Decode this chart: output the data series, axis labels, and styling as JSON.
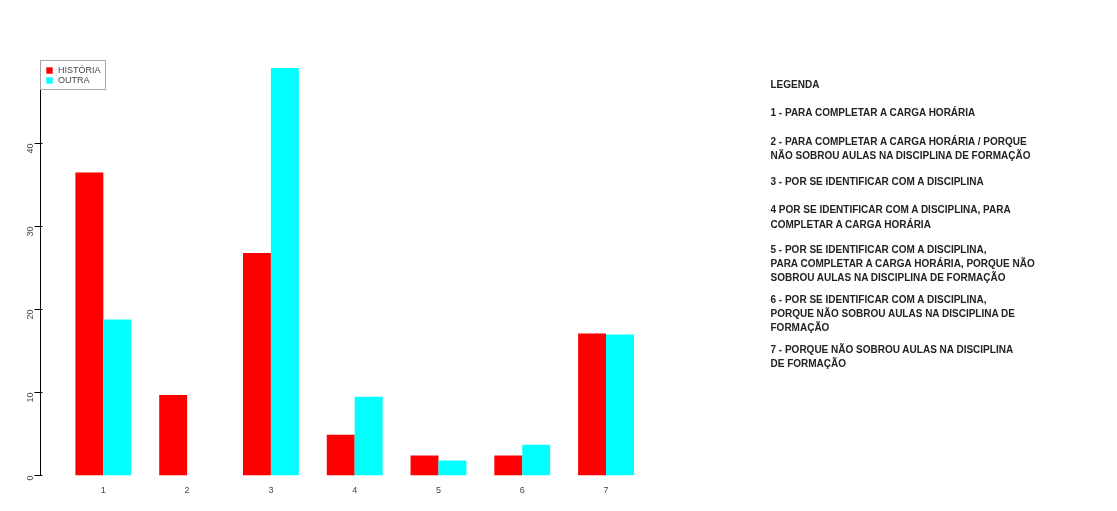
{
  "chart_data": {
    "type": "bar",
    "categories": [
      "1",
      "2",
      "3",
      "4",
      "5",
      "6",
      "7"
    ],
    "series": [
      {
        "name": "HISTÓRIA",
        "color": "#ff0000",
        "values": [
          36.5,
          9.7,
          26.8,
          4.9,
          2.4,
          2.4,
          17.1
        ]
      },
      {
        "name": "OUTRA",
        "color": "#00ffff",
        "values": [
          18.8,
          0,
          49.1,
          9.5,
          1.8,
          3.7,
          17.0
        ]
      }
    ],
    "ylim": [
      0,
      50
    ],
    "yticks": [
      0,
      10,
      20,
      30,
      40
    ],
    "grid": false,
    "legend": "top left",
    "annotations": [
      "LEGENDA",
      "1 - PARA COMPLETAR A CARGA HORÁRIA",
      "2 - PARA COMPLETAR A CARGA HORÁRIA / PORQUE NÃO SOBROU AULAS NA DISCIPLINA DE FORMAÇÃO",
      "3 - POR SE IDENTIFICAR COM A DISCIPLINA",
      "4  POR SE IDENTIFICAR COM A DISCIPLINA, PARA COMPLETAR A CARGA HORÁRIA",
      "5 - POR SE IDENTIFICAR COM A DISCIPLINA, PARA COMPLETAR A CARGA HORÁRIA, PORQUE NÃO SOBROU AULAS NA DISCIPLINA DE FORMAÇÃO",
      "6 - POR SE IDENTIFICAR COM A DISCIPLINA, PORQUE NÃO SOBROU AULAS NA DISCIPLINA DE FORMAÇÃO",
      "7 -  PORQUE NÃO SOBROU AULAS NA DISCIPLINA DE FORMAÇÃO"
    ]
  }
}
